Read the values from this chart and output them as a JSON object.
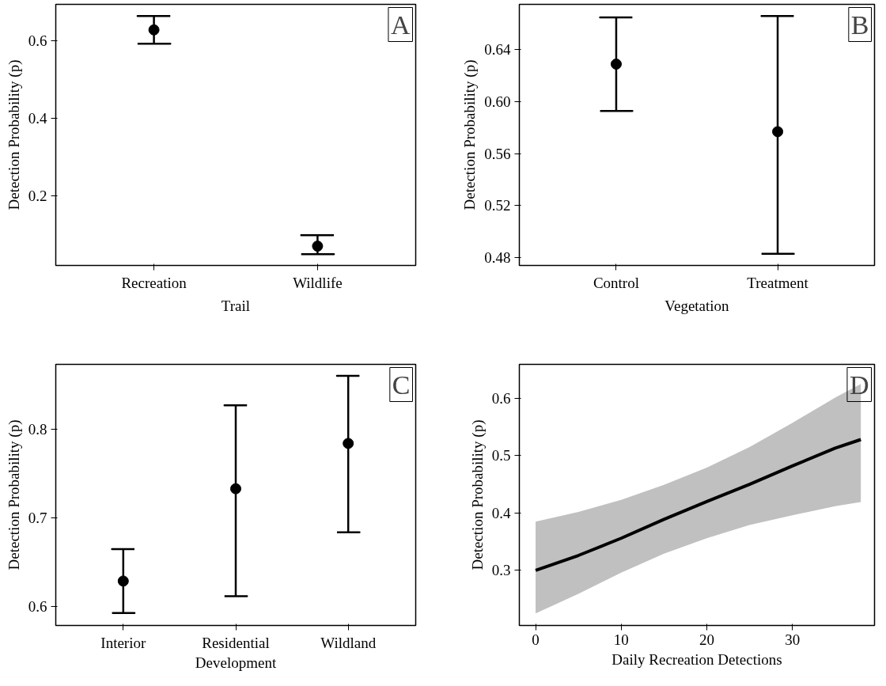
{
  "chart_data": [
    {
      "type": "scatter",
      "title": "A",
      "xlabel": "Trail",
      "ylabel": "Detection Probability (p)",
      "categories": [
        "Recreation",
        "Wildlife"
      ],
      "values": [
        0.629,
        0.07
      ],
      "errors": [
        [
          0.593,
          0.665
        ],
        [
          0.049,
          0.098
        ]
      ],
      "color": "#000000",
      "marker": "circle",
      "ylim": [
        0.02,
        0.695
      ],
      "yticks": [
        0.2,
        0.4,
        0.6
      ],
      "grid": false
    },
    {
      "type": "scatter",
      "title": "B",
      "xlabel": "Vegetation",
      "ylabel": "Detection Probability (p)",
      "categories": [
        "Control",
        "Treatment"
      ],
      "values": [
        0.629,
        0.577
      ],
      "errors": [
        [
          0.593,
          0.665
        ],
        [
          0.483,
          0.666
        ]
      ],
      "color": "#000000",
      "marker": "circle",
      "ylim": [
        0.474,
        0.675
      ],
      "yticks": [
        {
          "value": 0.48,
          "label": "0.48"
        },
        {
          "value": 0.52,
          "label": "0.52"
        },
        {
          "value": 0.56,
          "label": "0.56"
        },
        {
          "value": 0.6,
          "label": "0.60"
        },
        {
          "value": 0.64,
          "label": "0.64"
        }
      ],
      "grid": false
    },
    {
      "type": "scatter",
      "title": "C",
      "ylabel": "Detection Probability (p)",
      "categories": [
        "Interior",
        "Residential Development",
        "Wildland"
      ],
      "values": [
        0.629,
        0.733,
        0.784
      ],
      "errors": [
        [
          0.593,
          0.665
        ],
        [
          0.612,
          0.827
        ],
        [
          0.684,
          0.86
        ]
      ],
      "color": "#000000",
      "marker": "circle",
      "ylim": [
        0.579,
        0.873
      ],
      "yticks": [
        0.6,
        0.7,
        0.8
      ],
      "grid": false
    },
    {
      "type": "line",
      "title": "D",
      "xlabel": "Daily Recreation Detections",
      "ylabel": "Detection Probability (p)",
      "x": [
        0,
        5,
        10,
        15,
        20,
        25,
        30,
        35,
        38
      ],
      "series": [
        {
          "color": "#000000",
          "values": [
            0.3,
            0.326,
            0.356,
            0.389,
            0.42,
            0.45,
            0.482,
            0.513,
            0.528
          ],
          "lower": [
            0.225,
            0.259,
            0.296,
            0.329,
            0.356,
            0.379,
            0.396,
            0.412,
            0.419
          ],
          "upper": [
            0.385,
            0.402,
            0.423,
            0.449,
            0.479,
            0.515,
            0.557,
            0.601,
            0.625
          ]
        }
      ],
      "xlim": [
        -1.9,
        39.6
      ],
      "xticks": [
        0,
        10,
        20,
        30
      ],
      "ylim": [
        0.204,
        0.659
      ],
      "yticks": [
        0.3,
        0.4,
        0.5,
        0.6
      ],
      "grid": false,
      "line_style": "solid",
      "marker": "none"
    }
  ]
}
